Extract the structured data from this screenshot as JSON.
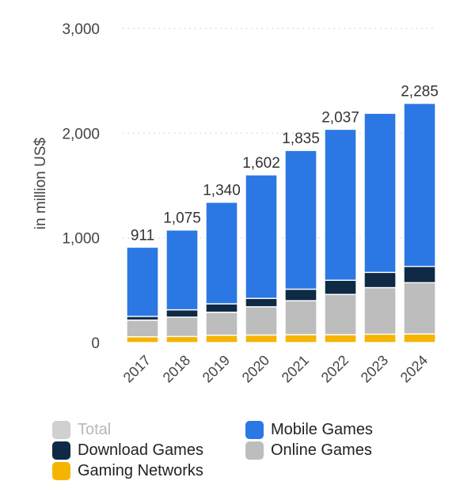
{
  "chart_data": {
    "type": "bar",
    "stacked": true,
    "categories": [
      "2017",
      "2018",
      "2019",
      "2020",
      "2021",
      "2022",
      "2023",
      "2024"
    ],
    "series": [
      {
        "name": "Gaming Networks",
        "color": "#f5b400",
        "values": [
          55,
          58,
          70,
          72,
          75,
          75,
          80,
          82
        ]
      },
      {
        "name": "Online Games",
        "color": "#bdbdbd",
        "values": [
          160,
          185,
          220,
          270,
          325,
          385,
          445,
          490
        ]
      },
      {
        "name": "Download Games",
        "color": "#0f2a45",
        "values": [
          35,
          70,
          80,
          80,
          110,
          135,
          145,
          155
        ]
      },
      {
        "name": "Mobile Games",
        "color": "#2b78e4",
        "values": [
          661,
          762,
          970,
          1180,
          1325,
          1442,
          1520,
          1558
        ]
      }
    ],
    "totals": [
      "911",
      "1,075",
      "1,340",
      "1,602",
      "1,835",
      "2,037",
      "",
      "2,285"
    ],
    "ylabel": "in million US$",
    "ylim": [
      0,
      3000
    ],
    "yticks": [
      0,
      1000,
      2000,
      3000
    ],
    "ytick_labels": [
      "0",
      "1,000",
      "2,000",
      "3,000"
    ],
    "grid": true
  },
  "legend": {
    "items": [
      {
        "label": "Total",
        "color": "#d0d0d0",
        "muted": true
      },
      {
        "label": "Mobile Games",
        "color": "#2b78e4",
        "muted": false
      },
      {
        "label": "Download Games",
        "color": "#0f2a45",
        "muted": false
      },
      {
        "label": "Online Games",
        "color": "#bdbdbd",
        "muted": false
      },
      {
        "label": "Gaming Networks",
        "color": "#f5b400",
        "muted": false
      }
    ]
  }
}
